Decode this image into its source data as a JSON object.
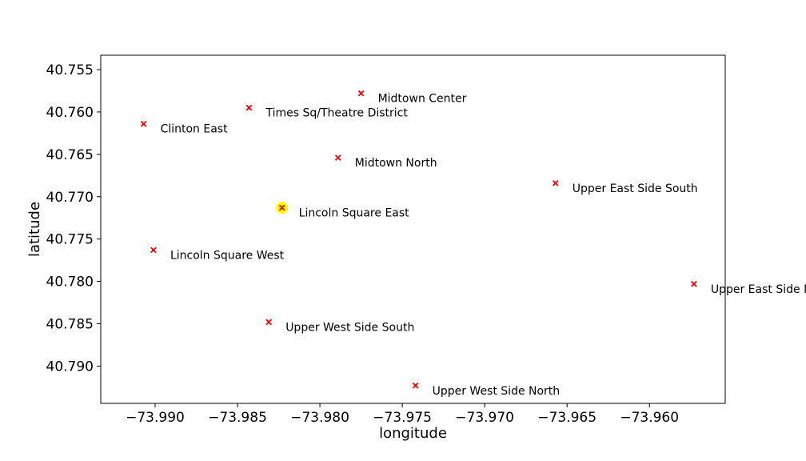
{
  "chart_data": {
    "type": "scatter",
    "xlabel": "longitude",
    "ylabel": "latitude",
    "xlim": [
      -73.9933,
      -73.9554
    ],
    "ylim": [
      40.7533,
      40.7944
    ],
    "y_inverted": true,
    "grid": false,
    "xticks": [
      -73.99,
      -73.985,
      -73.98,
      -73.975,
      -73.97,
      -73.965,
      -73.96
    ],
    "xtick_labels": [
      "−73.990",
      "−73.985",
      "−73.980",
      "−73.975",
      "−73.970",
      "−73.965",
      "−73.960"
    ],
    "yticks": [
      40.755,
      40.76,
      40.765,
      40.77,
      40.775,
      40.78,
      40.785,
      40.79
    ],
    "ytick_labels": [
      "40.755",
      "40.760",
      "40.765",
      "40.770",
      "40.775",
      "40.780",
      "40.785",
      "40.790"
    ],
    "marker": "x",
    "marker_color": "#ff0000",
    "highlight_color": "#ffff00",
    "points": [
      {
        "label": "Midtown Center",
        "x": -73.9775,
        "y": 40.7578,
        "highlight": false
      },
      {
        "label": "Times Sq/Theatre District",
        "x": -73.9843,
        "y": 40.7595,
        "highlight": false
      },
      {
        "label": "Clinton East",
        "x": -73.9907,
        "y": 40.7614,
        "highlight": false
      },
      {
        "label": "Midtown North",
        "x": -73.9789,
        "y": 40.7654,
        "highlight": false
      },
      {
        "label": "Upper East Side South",
        "x": -73.9657,
        "y": 40.7684,
        "highlight": false
      },
      {
        "label": "Lincoln Square East",
        "x": -73.9823,
        "y": 40.7713,
        "highlight": true
      },
      {
        "label": "Lincoln Square West",
        "x": -73.9901,
        "y": 40.7763,
        "highlight": false
      },
      {
        "label": "Upper East Side North",
        "x": -73.9573,
        "y": 40.7803,
        "highlight": false
      },
      {
        "label": "Upper West Side South",
        "x": -73.9831,
        "y": 40.7848,
        "highlight": false
      },
      {
        "label": "Upper West Side North",
        "x": -73.9742,
        "y": 40.7923,
        "highlight": false
      }
    ]
  }
}
